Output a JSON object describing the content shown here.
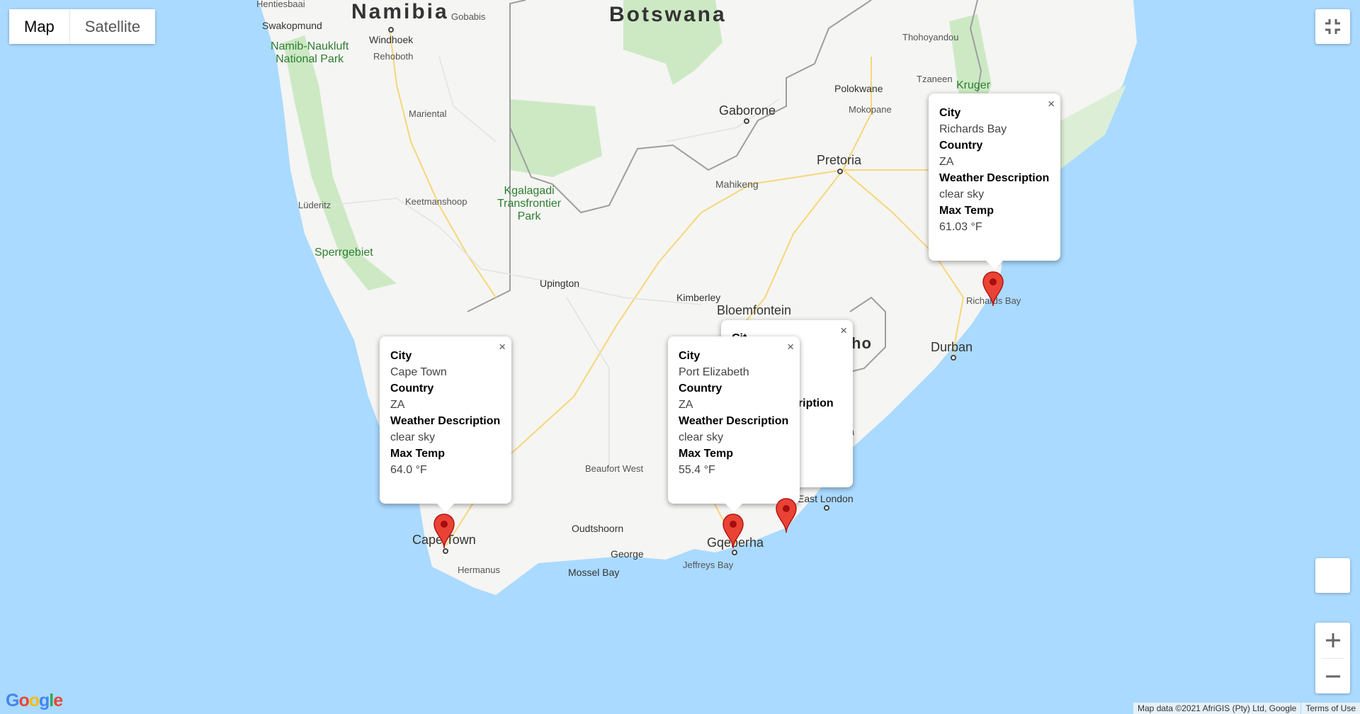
{
  "map_type": {
    "map_label": "Map",
    "satellite_label": "Satellite",
    "selected": "Map"
  },
  "countries": [
    "Namibia",
    "Botswana"
  ],
  "places": {
    "hentiesbaai": "Hentiesbaai",
    "swakopmund": "Swakopmund",
    "windhoek": "Windhoek",
    "gobabis": "Gobabis",
    "rehoboth": "Rehoboth",
    "mariental": "Mariental",
    "luderitz": "Lüderitz",
    "keetmanshoop": "Keetmanshoop",
    "upington": "Upington",
    "gaborone": "Gaborone",
    "mahikeng": "Mahikeng",
    "pretoria": "Pretoria",
    "polokwane": "Polokwane",
    "mokopane": "Mokopane",
    "thohoyandou": "Thohoyandou",
    "tzaneen": "Tzaneen",
    "kruger": "Kruger",
    "kimberley": "Kimberley",
    "bloemfontein": "Bloemfontein",
    "lesotho_part": "ho",
    "durban": "Durban",
    "mthatha_part": "thatha",
    "east_london": "East London",
    "beaufort_west": "Beaufort West",
    "oudtshoorn": "Oudtshoorn",
    "george": "George",
    "mossel_bay": "Mossel Bay",
    "hermanus": "Hermanus",
    "jeffreys_bay": "Jeffreys Bay",
    "cape_town": "Cape Town",
    "gqeberha": "Gqeberha",
    "richards_bay": "Richards Bay"
  },
  "parks": {
    "namib": "Namib-Naukluft\nNational Park",
    "kgalagadi": "Kgalagadi\nTransfrontier\nPark",
    "sperrgebiet": "Sperrgebiet"
  },
  "info_windows": [
    {
      "city_label": "City",
      "city": "Cape Town",
      "country_label": "Country",
      "country": "ZA",
      "desc_label": "Weather Description",
      "desc": "clear sky",
      "temp_label": "Max Temp",
      "temp": "64.0 °F"
    },
    {
      "city_label": "City",
      "city": "Port Elizabeth",
      "country_label": "Country",
      "country": "ZA",
      "desc_label": "Weather Description",
      "desc": "clear sky",
      "temp_label": "Max Temp",
      "temp": "55.4 °F"
    },
    {
      "city_label": "City",
      "city": "Richards Bay",
      "country_label": "Country",
      "country": "ZA",
      "desc_label": "Weather Description",
      "desc": "clear sky",
      "temp_label": "Max Temp",
      "temp": "61.03 °F"
    }
  ],
  "hidden_info": {
    "city_part": "Cit",
    "desc_part": "cription"
  },
  "close_glyph": "×",
  "google_logo": "Google",
  "attribution": {
    "map_data": "Map data ©2021 AfriGIS (Pty) Ltd, Google",
    "terms": "Terms of Use"
  },
  "colors": {
    "water": "#aadaff",
    "land": "#f5f5f3",
    "park_green": "#cce9c4",
    "marker_red": "#ea4335",
    "road_yellow": "#f7d67a"
  },
  "icons": {
    "fullscreen": "fullscreen-exit-icon",
    "zoom_in": "plus-icon",
    "zoom_out": "minus-icon",
    "marker": "map-pin-icon",
    "close": "close-icon"
  }
}
